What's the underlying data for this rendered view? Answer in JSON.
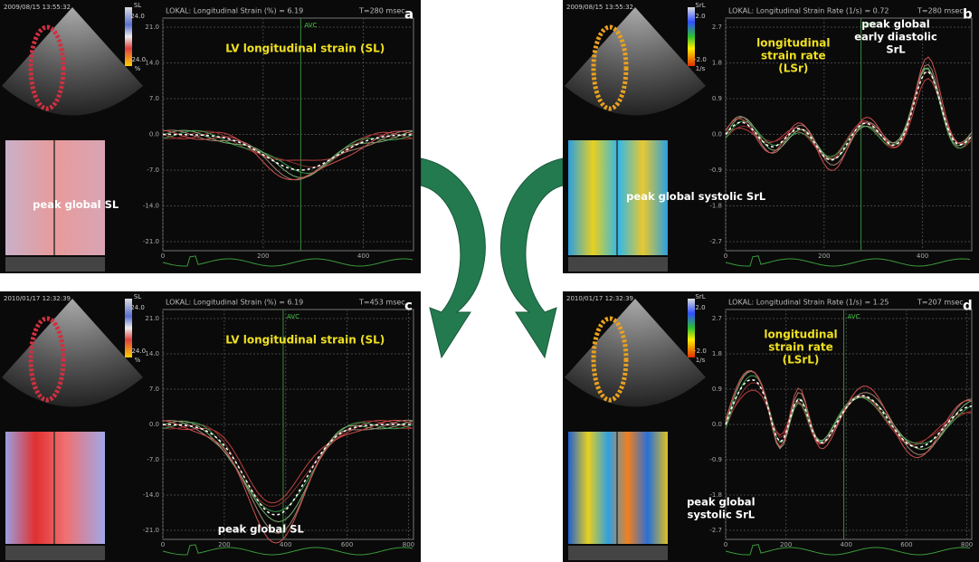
{
  "panels": [
    {
      "letter": "a",
      "date": "2009/08/15 13:55:32",
      "scale": [
        "SL",
        "24.0",
        "-24.0",
        "%"
      ],
      "header": "LOKAL: Longitudinal Strain (%) = 6.19",
      "time": "T=280 msec",
      "marker": "AVC",
      "title": [
        "LV longitudinal strain (SL)"
      ],
      "annotations": [
        [
          "peak global SL"
        ]
      ],
      "yticks": [
        "21.0",
        "14.0",
        "7.0",
        "0.0",
        "-7.0",
        "-14.0",
        "-21.0"
      ],
      "xticks": [
        "0",
        "200",
        "400"
      ]
    },
    {
      "letter": "b",
      "date": "2009/08/15 13:55:32",
      "scale": [
        "SrL",
        "2.0",
        "-2.0",
        "1/s"
      ],
      "header": "LOKAL: Longitudinal Strain Rate (1/s) = 0.72",
      "time": "T=280 msec",
      "marker": "AVC",
      "title": [
        "longitudinal",
        "strain rate",
        "(LSr)"
      ],
      "annotations": [
        [
          "peak global",
          "early diastolic",
          "SrL"
        ],
        [
          "peak global systolic SrL"
        ]
      ],
      "yticks": [
        "2.7",
        "1.8",
        "0.9",
        "0.0",
        "-0.9",
        "-1.8",
        "-2.7"
      ],
      "xticks": [
        "0",
        "200",
        "400"
      ]
    },
    {
      "letter": "c",
      "date": "2010/01/17 12:32:39",
      "scale": [
        "SL",
        "24.0",
        "-24.0",
        "%"
      ],
      "header": "LOKAL: Longitudinal Strain (%) = 6.19",
      "time": "T=453 msec",
      "marker": "AVC",
      "title": [
        "LV longitudinal strain (SL)"
      ],
      "annotations": [
        [
          "peak global SL"
        ]
      ],
      "yticks": [
        "21.0",
        "14.0",
        "7.0",
        "0.0",
        "-7.0",
        "-14.0",
        "-21.0"
      ],
      "xticks": [
        "0",
        "200",
        "400",
        "600",
        "800"
      ]
    },
    {
      "letter": "d",
      "date": "2010/01/17 12:32:39",
      "scale": [
        "SrL",
        "2.0",
        "-2.0",
        "1/s"
      ],
      "header": "LOKAL: Longitudinal Strain Rate (1/s) = 1.25",
      "time": "T=207 msec",
      "marker": "AVC",
      "title": [
        "longitudinal",
        "strain rate",
        "(LSrL)"
      ],
      "annotations": [
        [
          "peak global",
          "systolic SrL"
        ]
      ],
      "yticks": [
        "2.7",
        "1.8",
        "0.9",
        "0.0",
        "-0.9",
        "-1.8",
        "-2.7"
      ],
      "xticks": [
        "0",
        "200",
        "400",
        "600",
        "800"
      ]
    }
  ]
}
